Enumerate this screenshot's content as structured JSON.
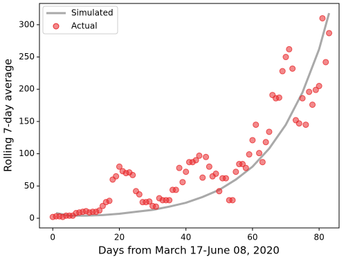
{
  "chart_data": {
    "type": "scatter",
    "xlabel": "Days from March 17-June 08, 2020",
    "ylabel": "Rolling 7-day average",
    "xlim": [
      -4,
      86
    ],
    "ylim": [
      -15,
      333
    ],
    "xticks": [
      0,
      20,
      40,
      60,
      80
    ],
    "yticks": [
      0,
      50,
      100,
      150,
      200,
      250,
      300
    ],
    "grid": false,
    "legend": "upper left",
    "series": [
      {
        "name": "Simulated",
        "type": "line",
        "color": "#a9a9a9",
        "x": [
          1,
          5,
          10,
          15,
          20,
          25,
          30,
          35,
          40,
          45,
          50,
          55,
          60,
          65,
          70,
          75,
          80,
          83
        ],
        "values": [
          8,
          4,
          4,
          5,
          7,
          10,
          13,
          18,
          24,
          33,
          44,
          60,
          80,
          108,
          145,
          195,
          262,
          318
        ]
      },
      {
        "name": "Actual",
        "type": "scatter",
        "color": "#e8282b",
        "x": [
          0,
          1,
          2,
          3,
          4,
          5,
          6,
          7,
          8,
          9,
          10,
          11,
          12,
          13,
          14,
          15,
          16,
          17,
          18,
          19,
          20,
          21,
          22,
          23,
          24,
          25,
          26,
          27,
          28,
          29,
          30,
          31,
          32,
          33,
          34,
          35,
          36,
          37,
          38,
          39,
          40,
          41,
          42,
          43,
          44,
          45,
          46,
          47,
          48,
          49,
          50,
          51,
          52,
          53,
          54,
          55,
          56,
          57,
          58,
          59,
          60,
          61,
          62,
          63,
          64,
          65,
          66,
          67,
          68,
          69,
          70,
          71,
          72,
          73,
          74,
          75,
          76,
          77,
          78,
          79,
          80,
          81,
          82,
          83
        ],
        "values": [
          2,
          3,
          3,
          2,
          4,
          4,
          4,
          8,
          9,
          10,
          11,
          9,
          10,
          10,
          12,
          19,
          25,
          27,
          60,
          65,
          80,
          73,
          70,
          71,
          67,
          42,
          37,
          25,
          25,
          26,
          19,
          18,
          31,
          28,
          28,
          28,
          44,
          44,
          78,
          56,
          72,
          87,
          87,
          90,
          97,
          63,
          95,
          80,
          65,
          69,
          42,
          62,
          62,
          28,
          28,
          72,
          84,
          84,
          78,
          99,
          121,
          145,
          101,
          87,
          118,
          134,
          191,
          186,
          187,
          228,
          250,
          262,
          232,
          152,
          147,
          186,
          145,
          196,
          176,
          199,
          205,
          310,
          242,
          287
        ]
      }
    ]
  }
}
